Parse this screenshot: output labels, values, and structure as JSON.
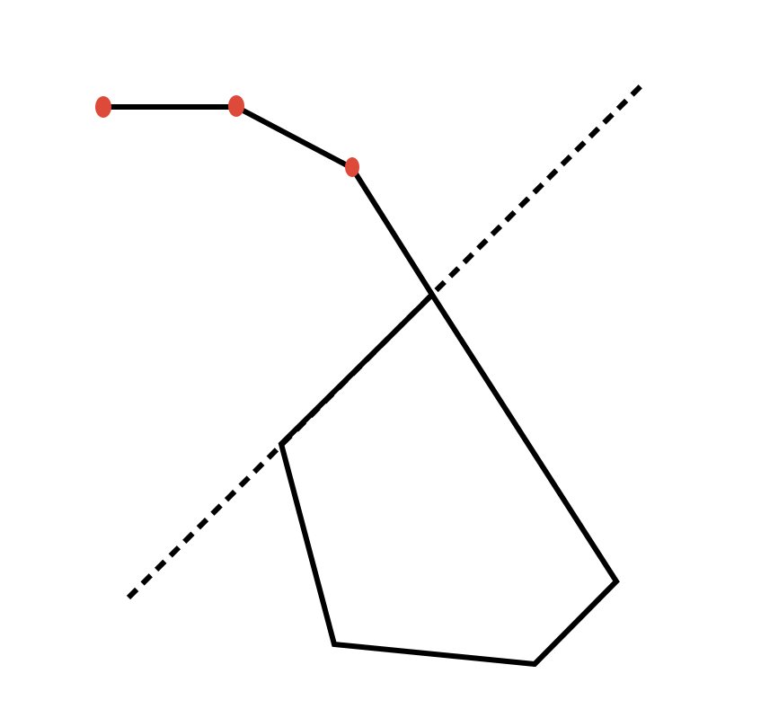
{
  "diagram": {
    "kind": "geometric-line-drawing",
    "colors": {
      "background": "#ffffff",
      "stroke": "#000000",
      "vertex": "#de4a3a"
    },
    "elements": {
      "dashed_line": {
        "style": "dashed",
        "color": "#000000"
      },
      "polyline": {
        "style": "solid",
        "color": "#000000",
        "vertex_markers": 3
      },
      "pentagon": {
        "style": "solid",
        "color": "#000000",
        "sides": 5
      }
    }
  }
}
